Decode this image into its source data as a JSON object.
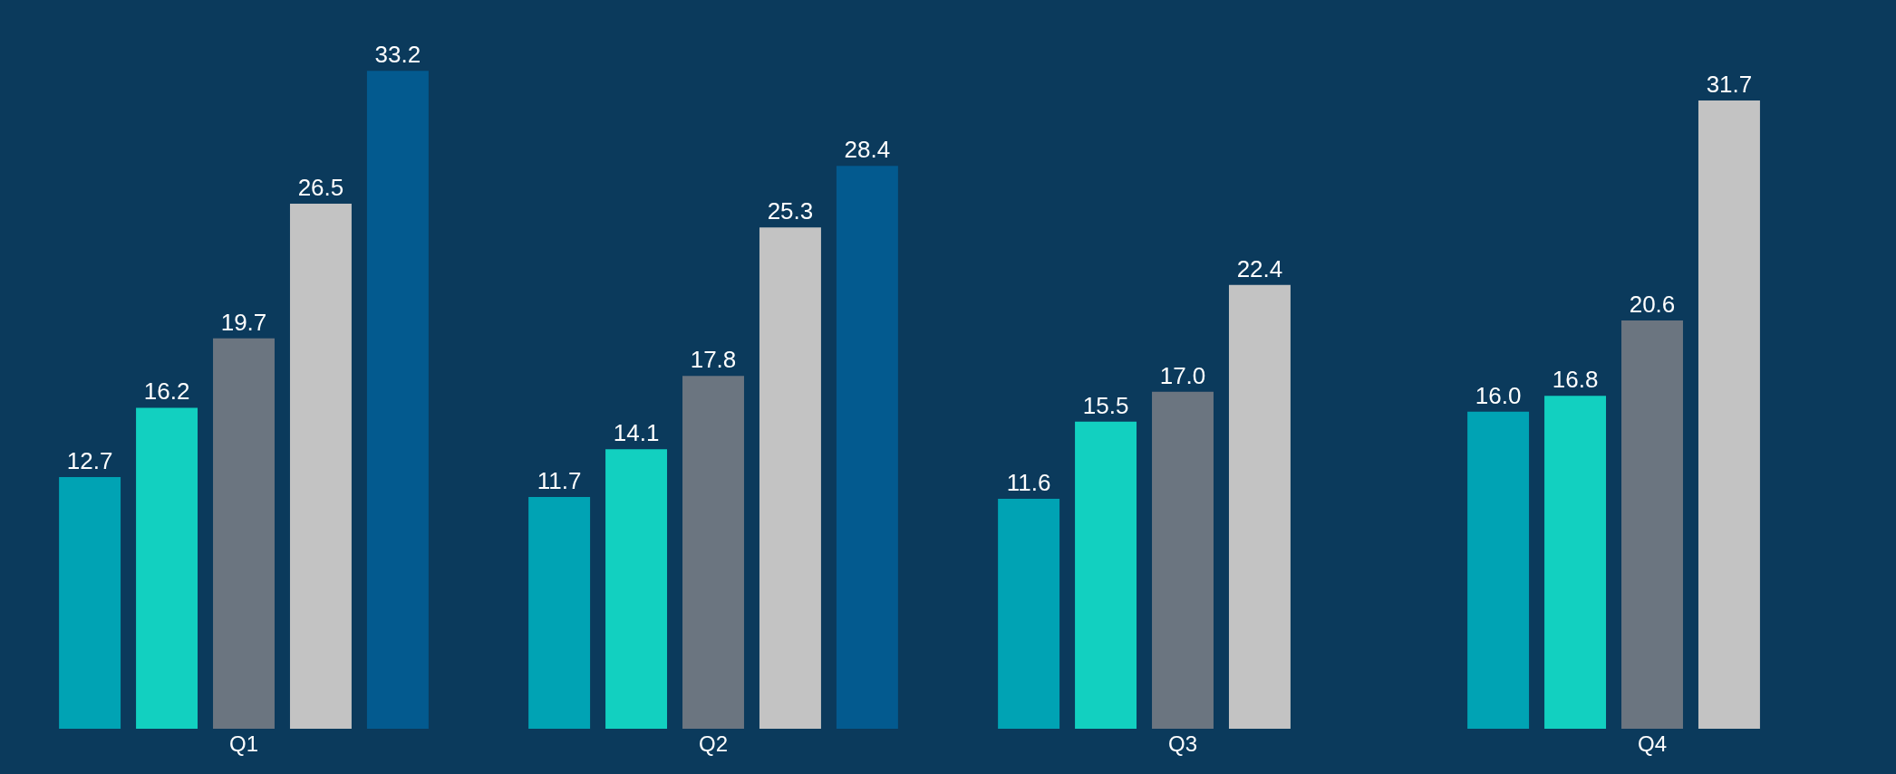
{
  "chart_data": {
    "type": "bar",
    "categories": [
      "Q1",
      "Q2",
      "Q3",
      "Q4"
    ],
    "series": [
      {
        "color": "#00a3b4",
        "values": [
          12.7,
          11.7,
          11.6,
          16.0
        ],
        "value_labels": [
          "12.7",
          "11.7",
          "11.6",
          "16.0"
        ]
      },
      {
        "color": "#12d0c0",
        "values": [
          16.2,
          14.1,
          15.5,
          16.8
        ],
        "value_labels": [
          "16.2",
          "14.1",
          "15.5",
          "16.8"
        ]
      },
      {
        "color": "#6b7580",
        "values": [
          19.7,
          17.8,
          17.0,
          20.6
        ],
        "value_labels": [
          "19.7",
          "17.8",
          "17.0",
          "20.6"
        ]
      },
      {
        "color": "#c3c3c3",
        "values": [
          26.5,
          25.3,
          22.4,
          31.7
        ],
        "value_labels": [
          "26.5",
          "25.3",
          "22.4",
          "31.7"
        ]
      },
      {
        "color": "#035a8f",
        "values": [
          33.2,
          28.4,
          null,
          null
        ],
        "value_labels": [
          "33.2",
          "28.4",
          null,
          null
        ]
      }
    ]
  }
}
